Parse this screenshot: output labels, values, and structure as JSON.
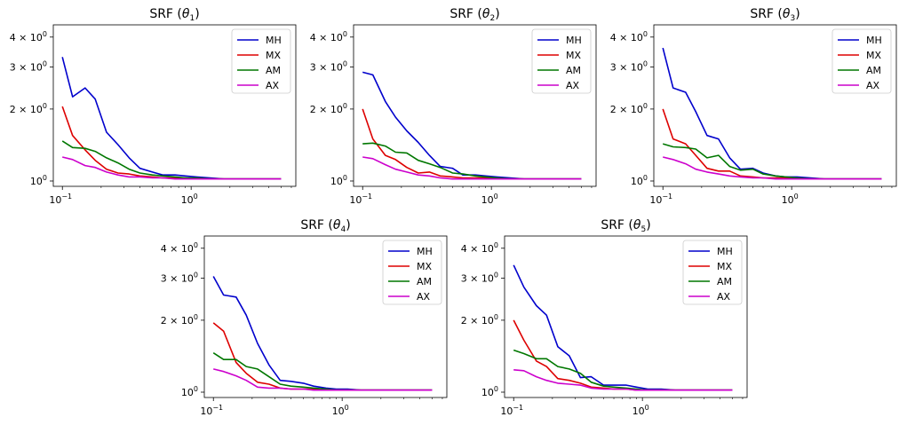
{
  "figure": {
    "background": "#ffffff"
  },
  "chart_data": [
    {
      "type": "line",
      "title": "SRF (θ1)",
      "title_base": "SRF (",
      "title_sym": "θ",
      "title_sub": "1",
      "title_end": ")",
      "xscale": "log",
      "yscale": "log",
      "xlim": [
        0.085,
        6.5
      ],
      "ylim": [
        0.95,
        4.5
      ],
      "xticks": [
        {
          "value": 0.1,
          "base": "10",
          "exp": "−1"
        },
        {
          "value": 1,
          "base": "10",
          "exp": "0"
        }
      ],
      "yticks": [
        {
          "value": 1,
          "mant": "10",
          "exp": "0"
        },
        {
          "value": 2,
          "mant": "2 × 10",
          "exp": "0"
        },
        {
          "value": 3,
          "mant": "3 × 10",
          "exp": "0"
        },
        {
          "value": 4,
          "mant": "4 × 10",
          "exp": "0"
        }
      ],
      "legend_position": "top-right",
      "x": [
        0.1,
        0.12,
        0.15,
        0.18,
        0.22,
        0.27,
        0.33,
        0.4,
        0.5,
        0.6,
        0.75,
        0.9,
        1.1,
        1.4,
        1.8,
        2.2,
        2.7,
        3.3,
        4.0,
        5.0
      ],
      "series": [
        {
          "name": "MH",
          "color": "#0000cc",
          "values": [
            3.3,
            2.25,
            2.45,
            2.2,
            1.6,
            1.42,
            1.25,
            1.13,
            1.09,
            1.06,
            1.06,
            1.05,
            1.04,
            1.03,
            1.02,
            1.02,
            1.02,
            1.02,
            1.02,
            1.02
          ]
        },
        {
          "name": "MX",
          "color": "#dd0000",
          "values": [
            2.05,
            1.55,
            1.35,
            1.22,
            1.12,
            1.08,
            1.07,
            1.05,
            1.04,
            1.03,
            1.03,
            1.03,
            1.02,
            1.02,
            1.02,
            1.02,
            1.02,
            1.02,
            1.02,
            1.02
          ]
        },
        {
          "name": "AM",
          "color": "#007700",
          "values": [
            1.47,
            1.38,
            1.37,
            1.33,
            1.25,
            1.19,
            1.12,
            1.08,
            1.06,
            1.05,
            1.04,
            1.03,
            1.03,
            1.02,
            1.02,
            1.02,
            1.02,
            1.02,
            1.02,
            1.02
          ]
        },
        {
          "name": "AX",
          "color": "#cc00cc",
          "values": [
            1.26,
            1.23,
            1.16,
            1.14,
            1.09,
            1.06,
            1.04,
            1.04,
            1.03,
            1.03,
            1.02,
            1.02,
            1.02,
            1.02,
            1.02,
            1.02,
            1.02,
            1.02,
            1.02,
            1.02
          ]
        }
      ]
    },
    {
      "type": "line",
      "title": "SRF (θ2)",
      "title_base": "SRF (",
      "title_sym": "θ",
      "title_sub": "2",
      "title_end": ")",
      "xscale": "log",
      "yscale": "log",
      "xlim": [
        0.085,
        6.5
      ],
      "ylim": [
        0.95,
        4.5
      ],
      "xticks": [
        {
          "value": 0.1,
          "base": "10",
          "exp": "−1"
        },
        {
          "value": 1,
          "base": "10",
          "exp": "0"
        }
      ],
      "yticks": [
        {
          "value": 1,
          "mant": "10",
          "exp": "0"
        },
        {
          "value": 2,
          "mant": "2 × 10",
          "exp": "0"
        },
        {
          "value": 3,
          "mant": "3 × 10",
          "exp": "0"
        },
        {
          "value": 4,
          "mant": "4 × 10",
          "exp": "0"
        }
      ],
      "legend_position": "top-right",
      "x": [
        0.1,
        0.12,
        0.15,
        0.18,
        0.22,
        0.27,
        0.33,
        0.4,
        0.5,
        0.6,
        0.75,
        0.9,
        1.1,
        1.4,
        1.8,
        2.2,
        2.7,
        3.3,
        4.0,
        5.0
      ],
      "series": [
        {
          "name": "MH",
          "color": "#0000cc",
          "values": [
            2.85,
            2.78,
            2.15,
            1.85,
            1.62,
            1.45,
            1.28,
            1.15,
            1.13,
            1.06,
            1.06,
            1.05,
            1.04,
            1.03,
            1.02,
            1.02,
            1.02,
            1.02,
            1.02,
            1.02
          ]
        },
        {
          "name": "MX",
          "color": "#dd0000",
          "values": [
            2.0,
            1.5,
            1.28,
            1.23,
            1.14,
            1.08,
            1.09,
            1.05,
            1.04,
            1.03,
            1.03,
            1.03,
            1.02,
            1.02,
            1.02,
            1.02,
            1.02,
            1.02,
            1.02,
            1.02
          ]
        },
        {
          "name": "AM",
          "color": "#007700",
          "values": [
            1.43,
            1.44,
            1.4,
            1.32,
            1.31,
            1.22,
            1.18,
            1.14,
            1.08,
            1.07,
            1.05,
            1.04,
            1.03,
            1.02,
            1.02,
            1.02,
            1.02,
            1.02,
            1.02,
            1.02
          ]
        },
        {
          "name": "AX",
          "color": "#cc00cc",
          "values": [
            1.26,
            1.24,
            1.17,
            1.12,
            1.09,
            1.06,
            1.05,
            1.03,
            1.02,
            1.02,
            1.02,
            1.02,
            1.02,
            1.02,
            1.02,
            1.02,
            1.02,
            1.02,
            1.02,
            1.02
          ]
        }
      ]
    },
    {
      "type": "line",
      "title": "SRF (θ3)",
      "title_base": "SRF (",
      "title_sym": "θ",
      "title_sub": "3",
      "title_end": ")",
      "xscale": "log",
      "yscale": "log",
      "xlim": [
        0.085,
        6.5
      ],
      "ylim": [
        0.95,
        4.5
      ],
      "xticks": [
        {
          "value": 0.1,
          "base": "10",
          "exp": "−1"
        },
        {
          "value": 1,
          "base": "10",
          "exp": "0"
        }
      ],
      "yticks": [
        {
          "value": 1,
          "mant": "10",
          "exp": "0"
        },
        {
          "value": 2,
          "mant": "2 × 10",
          "exp": "0"
        },
        {
          "value": 3,
          "mant": "3 × 10",
          "exp": "0"
        },
        {
          "value": 4,
          "mant": "4 × 10",
          "exp": "0"
        }
      ],
      "legend_position": "top-right",
      "x": [
        0.1,
        0.12,
        0.15,
        0.18,
        0.22,
        0.27,
        0.33,
        0.4,
        0.5,
        0.6,
        0.75,
        0.9,
        1.1,
        1.4,
        1.8,
        2.2,
        2.7,
        3.3,
        4.0,
        5.0
      ],
      "series": [
        {
          "name": "MH",
          "color": "#0000cc",
          "values": [
            3.6,
            2.45,
            2.35,
            1.95,
            1.55,
            1.5,
            1.25,
            1.12,
            1.13,
            1.08,
            1.05,
            1.04,
            1.04,
            1.03,
            1.02,
            1.02,
            1.02,
            1.02,
            1.02,
            1.02
          ]
        },
        {
          "name": "MX",
          "color": "#dd0000",
          "values": [
            2.0,
            1.5,
            1.43,
            1.28,
            1.13,
            1.1,
            1.1,
            1.05,
            1.04,
            1.03,
            1.03,
            1.03,
            1.02,
            1.02,
            1.02,
            1.02,
            1.02,
            1.02,
            1.02,
            1.02
          ]
        },
        {
          "name": "AM",
          "color": "#007700",
          "values": [
            1.43,
            1.39,
            1.38,
            1.36,
            1.25,
            1.28,
            1.15,
            1.11,
            1.12,
            1.07,
            1.05,
            1.04,
            1.03,
            1.02,
            1.02,
            1.02,
            1.02,
            1.02,
            1.02,
            1.02
          ]
        },
        {
          "name": "AX",
          "color": "#cc00cc",
          "values": [
            1.26,
            1.23,
            1.18,
            1.12,
            1.09,
            1.07,
            1.05,
            1.04,
            1.03,
            1.03,
            1.02,
            1.02,
            1.02,
            1.02,
            1.02,
            1.02,
            1.02,
            1.02,
            1.02,
            1.02
          ]
        }
      ]
    },
    {
      "type": "line",
      "title": "SRF (θ4)",
      "title_base": "SRF (",
      "title_sym": "θ",
      "title_sub": "4",
      "title_end": ")",
      "xscale": "log",
      "yscale": "log",
      "xlim": [
        0.085,
        6.5
      ],
      "ylim": [
        0.95,
        4.5
      ],
      "xticks": [
        {
          "value": 0.1,
          "base": "10",
          "exp": "−1"
        },
        {
          "value": 1,
          "base": "10",
          "exp": "0"
        }
      ],
      "yticks": [
        {
          "value": 1,
          "mant": "10",
          "exp": "0"
        },
        {
          "value": 2,
          "mant": "2 × 10",
          "exp": "0"
        },
        {
          "value": 3,
          "mant": "3 × 10",
          "exp": "0"
        },
        {
          "value": 4,
          "mant": "4 × 10",
          "exp": "0"
        }
      ],
      "legend_position": "top-right",
      "x": [
        0.1,
        0.12,
        0.15,
        0.18,
        0.22,
        0.27,
        0.33,
        0.4,
        0.5,
        0.6,
        0.75,
        0.9,
        1.1,
        1.4,
        1.8,
        2.2,
        2.7,
        3.3,
        4.0,
        5.0
      ],
      "series": [
        {
          "name": "MH",
          "color": "#0000cc",
          "values": [
            3.05,
            2.55,
            2.5,
            2.1,
            1.6,
            1.3,
            1.12,
            1.11,
            1.09,
            1.06,
            1.04,
            1.03,
            1.03,
            1.02,
            1.02,
            1.02,
            1.02,
            1.02,
            1.02,
            1.02
          ]
        },
        {
          "name": "MX",
          "color": "#dd0000",
          "values": [
            1.95,
            1.8,
            1.33,
            1.2,
            1.1,
            1.08,
            1.04,
            1.03,
            1.03,
            1.03,
            1.02,
            1.02,
            1.02,
            1.02,
            1.02,
            1.02,
            1.02,
            1.02,
            1.02,
            1.02
          ]
        },
        {
          "name": "AM",
          "color": "#007700",
          "values": [
            1.46,
            1.37,
            1.37,
            1.28,
            1.25,
            1.16,
            1.08,
            1.06,
            1.05,
            1.04,
            1.03,
            1.02,
            1.02,
            1.02,
            1.02,
            1.02,
            1.02,
            1.02,
            1.02,
            1.02
          ]
        },
        {
          "name": "AX",
          "color": "#cc00cc",
          "values": [
            1.25,
            1.22,
            1.17,
            1.12,
            1.05,
            1.04,
            1.04,
            1.03,
            1.03,
            1.02,
            1.02,
            1.02,
            1.02,
            1.02,
            1.02,
            1.02,
            1.02,
            1.02,
            1.02,
            1.02
          ]
        }
      ]
    },
    {
      "type": "line",
      "title": "SRF (θ5)",
      "title_base": "SRF (",
      "title_sym": "θ",
      "title_sub": "5",
      "title_end": ")",
      "xscale": "log",
      "yscale": "log",
      "xlim": [
        0.085,
        6.5
      ],
      "ylim": [
        0.95,
        4.5
      ],
      "xticks": [
        {
          "value": 0.1,
          "base": "10",
          "exp": "−1"
        },
        {
          "value": 1,
          "base": "10",
          "exp": "0"
        }
      ],
      "yticks": [
        {
          "value": 1,
          "mant": "10",
          "exp": "0"
        },
        {
          "value": 2,
          "mant": "2 × 10",
          "exp": "0"
        },
        {
          "value": 3,
          "mant": "3 × 10",
          "exp": "0"
        },
        {
          "value": 4,
          "mant": "4 × 10",
          "exp": "0"
        }
      ],
      "legend_position": "top-right",
      "x": [
        0.1,
        0.12,
        0.15,
        0.18,
        0.22,
        0.27,
        0.33,
        0.4,
        0.5,
        0.6,
        0.75,
        0.9,
        1.1,
        1.4,
        1.8,
        2.2,
        2.7,
        3.3,
        4.0,
        5.0
      ],
      "series": [
        {
          "name": "MH",
          "color": "#0000cc",
          "values": [
            3.4,
            2.75,
            2.3,
            2.1,
            1.55,
            1.42,
            1.15,
            1.16,
            1.07,
            1.07,
            1.07,
            1.05,
            1.03,
            1.03,
            1.02,
            1.02,
            1.02,
            1.02,
            1.02,
            1.02
          ]
        },
        {
          "name": "MX",
          "color": "#dd0000",
          "values": [
            2.0,
            1.65,
            1.35,
            1.28,
            1.14,
            1.12,
            1.09,
            1.05,
            1.04,
            1.03,
            1.03,
            1.02,
            1.02,
            1.02,
            1.02,
            1.02,
            1.02,
            1.02,
            1.02,
            1.02
          ]
        },
        {
          "name": "AM",
          "color": "#007700",
          "values": [
            1.5,
            1.45,
            1.38,
            1.38,
            1.28,
            1.25,
            1.2,
            1.1,
            1.06,
            1.05,
            1.04,
            1.03,
            1.02,
            1.02,
            1.02,
            1.02,
            1.02,
            1.02,
            1.02,
            1.02
          ]
        },
        {
          "name": "AX",
          "color": "#cc00cc",
          "values": [
            1.24,
            1.23,
            1.16,
            1.12,
            1.09,
            1.08,
            1.07,
            1.04,
            1.03,
            1.03,
            1.03,
            1.02,
            1.02,
            1.02,
            1.02,
            1.02,
            1.02,
            1.02,
            1.02,
            1.02
          ]
        }
      ]
    }
  ]
}
